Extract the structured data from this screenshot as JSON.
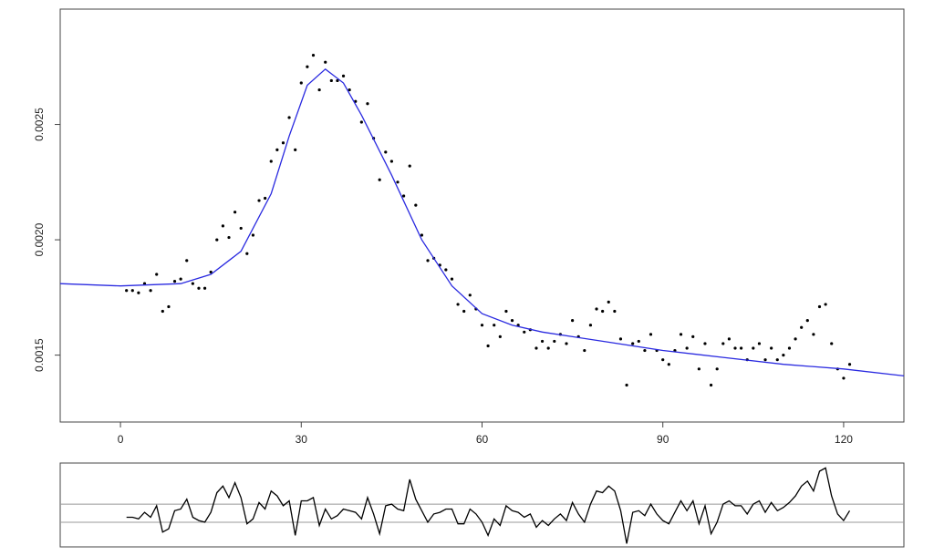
{
  "chart_data": [
    {
      "type": "scatter",
      "xlim": [
        -10,
        130
      ],
      "xticks": [
        0,
        30,
        60,
        90,
        120
      ],
      "ylim": [
        0.00121,
        0.003
      ],
      "yticks": [
        0.0015,
        {
          "value": 0.002,
          "label": "0.0020"
        },
        0.0025
      ],
      "series": [
        {
          "type": "scatter",
          "color": "#000000",
          "x": [
            1,
            2,
            3,
            4,
            5,
            6,
            7,
            8,
            9,
            10,
            11,
            12,
            13,
            14,
            15,
            16,
            17,
            18,
            19,
            20,
            21,
            22,
            23,
            24,
            25,
            26,
            27,
            28,
            29,
            30,
            31,
            32,
            33,
            34,
            35,
            36,
            37,
            38,
            39,
            40,
            41,
            42,
            43,
            44,
            45,
            46,
            47,
            48,
            49,
            50,
            51,
            52,
            53,
            54,
            55,
            56,
            57,
            58,
            59,
            60,
            61,
            62,
            63,
            64,
            65,
            66,
            67,
            68,
            69,
            70,
            71,
            72,
            73,
            74,
            75,
            76,
            77,
            78,
            79,
            80,
            81,
            82,
            83,
            84,
            85,
            86,
            87,
            88,
            89,
            90,
            91,
            92,
            93,
            94,
            95,
            96,
            97,
            98,
            99,
            100,
            101,
            102,
            103,
            104,
            105,
            106,
            107,
            108,
            109,
            110,
            111,
            112,
            113,
            114,
            115,
            116,
            117,
            118,
            119,
            120,
            121
          ],
          "values": [
            0.00178,
            0.00178,
            0.00177,
            0.00181,
            0.00178,
            0.00185,
            0.00169,
            0.00171,
            0.00182,
            0.00183,
            0.00191,
            0.00181,
            0.00179,
            0.00179,
            0.00186,
            0.002,
            0.00206,
            0.00201,
            0.00212,
            0.00205,
            0.00194,
            0.00202,
            0.00217,
            0.00218,
            0.00234,
            0.00239,
            0.00242,
            0.00253,
            0.00239,
            0.00268,
            0.00275,
            0.0028,
            0.00265,
            0.00277,
            0.00269,
            0.00269,
            0.00271,
            0.00265,
            0.0026,
            0.00251,
            0.00259,
            0.00244,
            0.00226,
            0.00238,
            0.00234,
            0.00225,
            0.00219,
            0.00232,
            0.00215,
            0.00202,
            0.00191,
            0.00192,
            0.00189,
            0.00187,
            0.00183,
            0.00172,
            0.00169,
            0.00176,
            0.0017,
            0.00163,
            0.00154,
            0.00163,
            0.00158,
            0.00169,
            0.00165,
            0.00163,
            0.0016,
            0.00161,
            0.00153,
            0.00156,
            0.00153,
            0.00156,
            0.00159,
            0.00155,
            0.00165,
            0.00158,
            0.00152,
            0.00163,
            0.0017,
            0.00169,
            0.00173,
            0.00169,
            0.00157,
            0.00137,
            0.00155,
            0.00156,
            0.00152,
            0.00159,
            0.00152,
            0.00148,
            0.00146,
            0.00152,
            0.00159,
            0.00153,
            0.00158,
            0.00144,
            0.00155,
            0.00137,
            0.00144,
            0.00155,
            0.00157,
            0.00153,
            0.00153,
            0.00148,
            0.00153,
            0.00155,
            0.00148,
            0.00153,
            0.00148,
            0.0015,
            0.00153,
            0.00157,
            0.00162,
            0.00165,
            0.00159,
            0.00171,
            0.00172,
            0.00155,
            0.00144,
            0.0014,
            0.00146
          ]
        },
        {
          "type": "line",
          "color": "#2a2ae0",
          "x": [
            -10,
            0,
            10,
            15,
            20,
            25,
            28,
            31,
            34,
            37,
            40,
            45,
            50,
            55,
            60,
            65,
            70,
            80,
            90,
            100,
            110,
            120,
            130
          ],
          "values": [
            0.00181,
            0.0018,
            0.00181,
            0.00185,
            0.00195,
            0.0022,
            0.00245,
            0.00267,
            0.00274,
            0.00268,
            0.00254,
            0.00228,
            0.002,
            0.0018,
            0.00168,
            0.00163,
            0.0016,
            0.00156,
            0.00152,
            0.00149,
            0.00146,
            0.00144,
            0.00141
          ]
        }
      ]
    },
    {
      "type": "line",
      "color": "#000000",
      "xlim": [
        -10,
        130
      ],
      "ylim": [
        -0.0002,
        0.00031
      ],
      "reference_lines": [
        6e-05,
        -5e-05
      ],
      "x": [
        1,
        2,
        3,
        4,
        5,
        6,
        7,
        8,
        9,
        10,
        11,
        12,
        13,
        14,
        15,
        16,
        17,
        18,
        19,
        20,
        21,
        22,
        23,
        24,
        25,
        26,
        27,
        28,
        29,
        30,
        31,
        32,
        33,
        34,
        35,
        36,
        37,
        38,
        39,
        40,
        41,
        42,
        43,
        44,
        45,
        46,
        47,
        48,
        49,
        50,
        51,
        52,
        53,
        54,
        55,
        56,
        57,
        58,
        59,
        60,
        61,
        62,
        63,
        64,
        65,
        66,
        67,
        68,
        69,
        70,
        71,
        72,
        73,
        74,
        75,
        76,
        77,
        78,
        79,
        80,
        81,
        82,
        83,
        84,
        85,
        86,
        87,
        88,
        89,
        90,
        91,
        92,
        93,
        94,
        95,
        96,
        97,
        98,
        99,
        100,
        101,
        102,
        103,
        104,
        105,
        106,
        107,
        108,
        109,
        110,
        111,
        112,
        113,
        114,
        115,
        116,
        117,
        118,
        119,
        120,
        121
      ],
      "values": [
        -2e-05,
        -2e-05,
        -3e-05,
        1e-05,
        -2e-05,
        5e-05,
        -0.00011,
        -9e-05,
        2e-05,
        3e-05,
        9e-05,
        -2e-05,
        -4e-05,
        -5e-05,
        1e-05,
        0.00013,
        0.00017,
        0.0001,
        0.00019,
        0.0001,
        -6e-05,
        -3e-05,
        7e-05,
        3e-05,
        0.00014,
        0.00011,
        5e-05,
        8e-05,
        -0.00013,
        8e-05,
        8e-05,
        0.0001,
        -7e-05,
        3e-05,
        -3e-05,
        -1e-05,
        3e-05,
        2e-05,
        1e-05,
        -3e-05,
        0.0001,
        0,
        -0.00012,
        5e-05,
        6e-05,
        3e-05,
        2e-05,
        0.00021,
        9e-05,
        2e-05,
        -5e-05,
        0,
        1e-05,
        3e-05,
        3e-05,
        -6e-05,
        -6e-05,
        3e-05,
        0,
        -5e-05,
        -0.00013,
        -3e-05,
        -7e-05,
        5e-05,
        2e-05,
        1e-05,
        -2e-05,
        0,
        -8e-05,
        -4e-05,
        -7e-05,
        -3e-05,
        0,
        -4e-05,
        7e-05,
        0,
        -5e-05,
        6e-05,
        0.00014,
        0.00013,
        0.00017,
        0.00014,
        2e-05,
        -0.00018,
        1e-05,
        2e-05,
        -1e-05,
        6e-05,
        0,
        -4e-05,
        -6e-05,
        1e-05,
        8e-05,
        2e-05,
        8e-05,
        -6e-05,
        5e-05,
        -0.00012,
        -5e-05,
        6e-05,
        8e-05,
        5e-05,
        5e-05,
        0,
        6e-05,
        8e-05,
        1e-05,
        7e-05,
        2e-05,
        4e-05,
        7e-05,
        0.00011,
        0.00017,
        0.0002,
        0.00014,
        0.00026,
        0.00028,
        0.00011,
        0,
        -4e-05,
        2e-05
      ]
    }
  ]
}
